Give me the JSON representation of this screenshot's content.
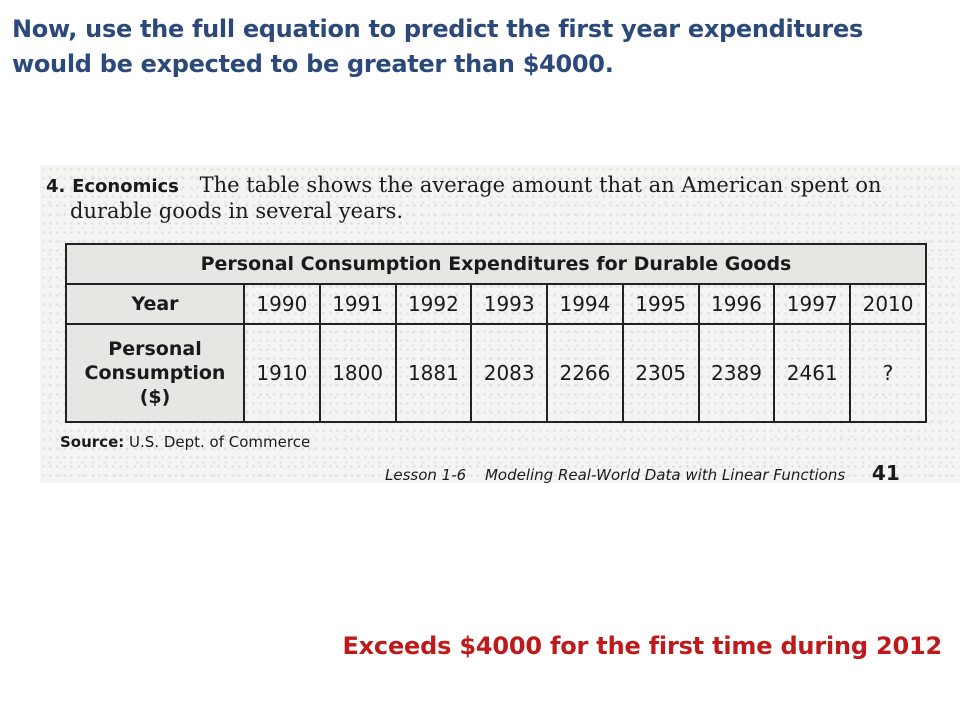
{
  "prompt": "Now, use the full equation to predict the first year expenditures would be expected to be greater than $4000.",
  "problem": {
    "number": "4.",
    "topic": "Economics",
    "text_line1": "The table shows the average amount that an American spent on",
    "text_line2": "durable goods in several years."
  },
  "table": {
    "caption": "Personal Consumption Expenditures for Durable Goods",
    "year_header": "Year",
    "consumption_header": [
      "Personal",
      "Consumption",
      "($)"
    ],
    "years": [
      "1990",
      "1991",
      "1992",
      "1993",
      "1994",
      "1995",
      "1996",
      "1997",
      "2010"
    ],
    "values": [
      "1910",
      "1800",
      "1881",
      "2083",
      "2266",
      "2305",
      "2389",
      "2461",
      "?"
    ]
  },
  "source": {
    "label": "Source:",
    "text": "U.S. Dept. of Commerce"
  },
  "footer": {
    "lesson": "Lesson 1-6",
    "title": "Modeling Real-World Data with Linear Functions",
    "page": "41"
  },
  "answer": "Exceeds $4000 for the first time during 2012"
}
